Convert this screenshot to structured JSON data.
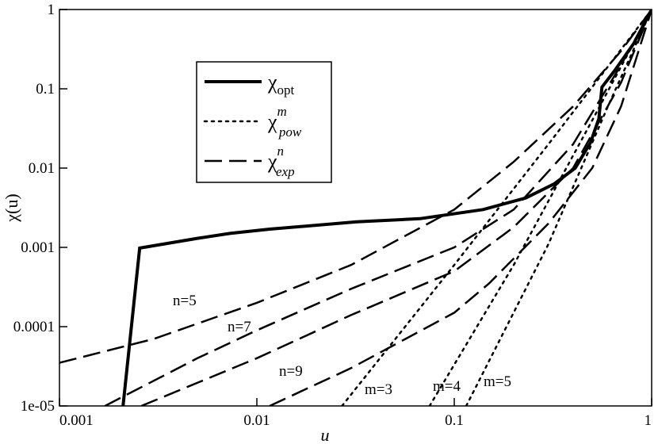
{
  "chart_data": {
    "type": "line",
    "xlabel": "u",
    "ylabel": "χ(u)",
    "xlog": true,
    "ylog": true,
    "xlim": [
      0.001,
      1
    ],
    "ylim": [
      1e-05,
      1
    ],
    "xticks": [
      0.001,
      0.01,
      0.1,
      1
    ],
    "yticks": [
      {
        "value": 1e-05,
        "label": "1e-05"
      },
      0.0001,
      0.001,
      0.01,
      0.1,
      1
    ],
    "legend": [
      {
        "symbol": "χ",
        "sub": "opt",
        "style": "solid"
      },
      {
        "symbol": "χ",
        "sup": "m",
        "sub": "pow",
        "style": "dotted"
      },
      {
        "symbol": "χ",
        "sup": "n",
        "sub": "exp",
        "style": "dashed"
      }
    ],
    "series": [
      {
        "style": "solid",
        "color": "#000000",
        "x": [
          0.0021,
          0.00255,
          0.005,
          0.0073,
          0.0116,
          0.0321,
          0.067,
          0.14,
          0.23,
          0.32,
          0.41,
          0.49,
          0.54,
          0.56,
          0.65,
          0.81,
          1
        ],
        "values": [
          1e-05,
          0.00098,
          0.0013,
          0.0015,
          0.0017,
          0.0021,
          0.0023,
          0.003,
          0.0042,
          0.0063,
          0.01,
          0.021,
          0.042,
          0.105,
          0.17,
          0.37,
          1
        ]
      },
      {
        "style": "dashed",
        "color": "#000000",
        "label": "n=5",
        "x": [
          0.001,
          0.003,
          0.01,
          0.03,
          0.1,
          0.2,
          0.4,
          0.7,
          1
        ],
        "values": [
          3.5e-05,
          7e-05,
          0.0002,
          0.0006,
          0.003,
          0.012,
          0.06,
          0.3,
          1
        ]
      },
      {
        "style": "dashed",
        "color": "#000000",
        "label": "n=7",
        "x": [
          0.0017,
          0.005,
          0.01,
          0.03,
          0.1,
          0.2,
          0.4,
          0.7,
          1
        ],
        "values": [
          1e-05,
          4e-05,
          9e-05,
          0.0003,
          0.001,
          0.003,
          0.02,
          0.2,
          1
        ]
      },
      {
        "style": "dashed",
        "color": "#000000",
        "label": "n=9",
        "x": [
          0.0026,
          0.01,
          0.03,
          0.1,
          0.2,
          0.4,
          0.7,
          1
        ],
        "values": [
          1e-05,
          4e-05,
          0.00014,
          0.0005,
          0.0018,
          0.01,
          0.12,
          1
        ]
      },
      {
        "style": "dashed",
        "color": "#000000",
        "x": [
          0.0116,
          0.03,
          0.1,
          0.15,
          0.3,
          0.5,
          0.7,
          1
        ],
        "values": [
          1e-05,
          3e-05,
          0.00015,
          0.00035,
          0.002,
          0.01,
          0.06,
          1
        ]
      },
      {
        "style": "dotted",
        "color": "#000000",
        "label": "m=3",
        "x": [
          0.027,
          0.1,
          0.3,
          1
        ],
        "values": [
          1e-05,
          0.0006,
          0.02,
          1
        ]
      },
      {
        "style": "dotted",
        "color": "#000000",
        "label": "m=4",
        "x": [
          0.075,
          0.2,
          0.5,
          1
        ],
        "values": [
          1e-05,
          0.0006,
          0.04,
          1
        ]
      },
      {
        "style": "dotted",
        "color": "#000000",
        "label": "m=5",
        "x": [
          0.115,
          0.3,
          0.6,
          1
        ],
        "values": [
          1e-05,
          0.0011,
          0.06,
          1
        ]
      }
    ]
  }
}
